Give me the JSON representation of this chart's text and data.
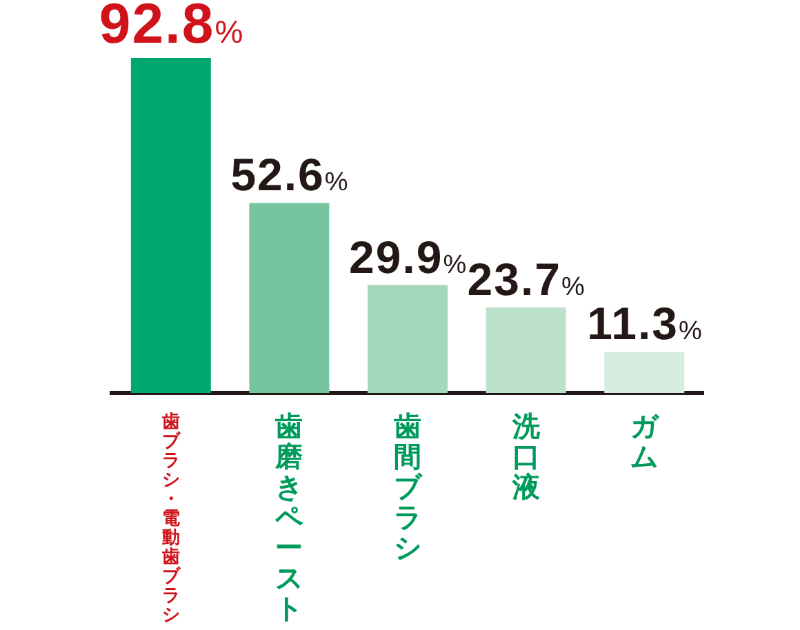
{
  "chart_data": {
    "type": "bar",
    "categories": [
      "歯ブラシ・電動歯ブラシ",
      "歯磨きペースト",
      "歯間ブラシ",
      "洗口液",
      "ガム"
    ],
    "values": [
      92.8,
      52.6,
      29.9,
      23.7,
      11.3
    ],
    "colors": [
      "#00a870",
      "#76c59e",
      "#a4d7bb",
      "#bce2cd",
      "#d5ede0"
    ],
    "value_labels": [
      "92.8%",
      "52.6%",
      "29.9%",
      "23.7%",
      "11.3%"
    ]
  }
}
